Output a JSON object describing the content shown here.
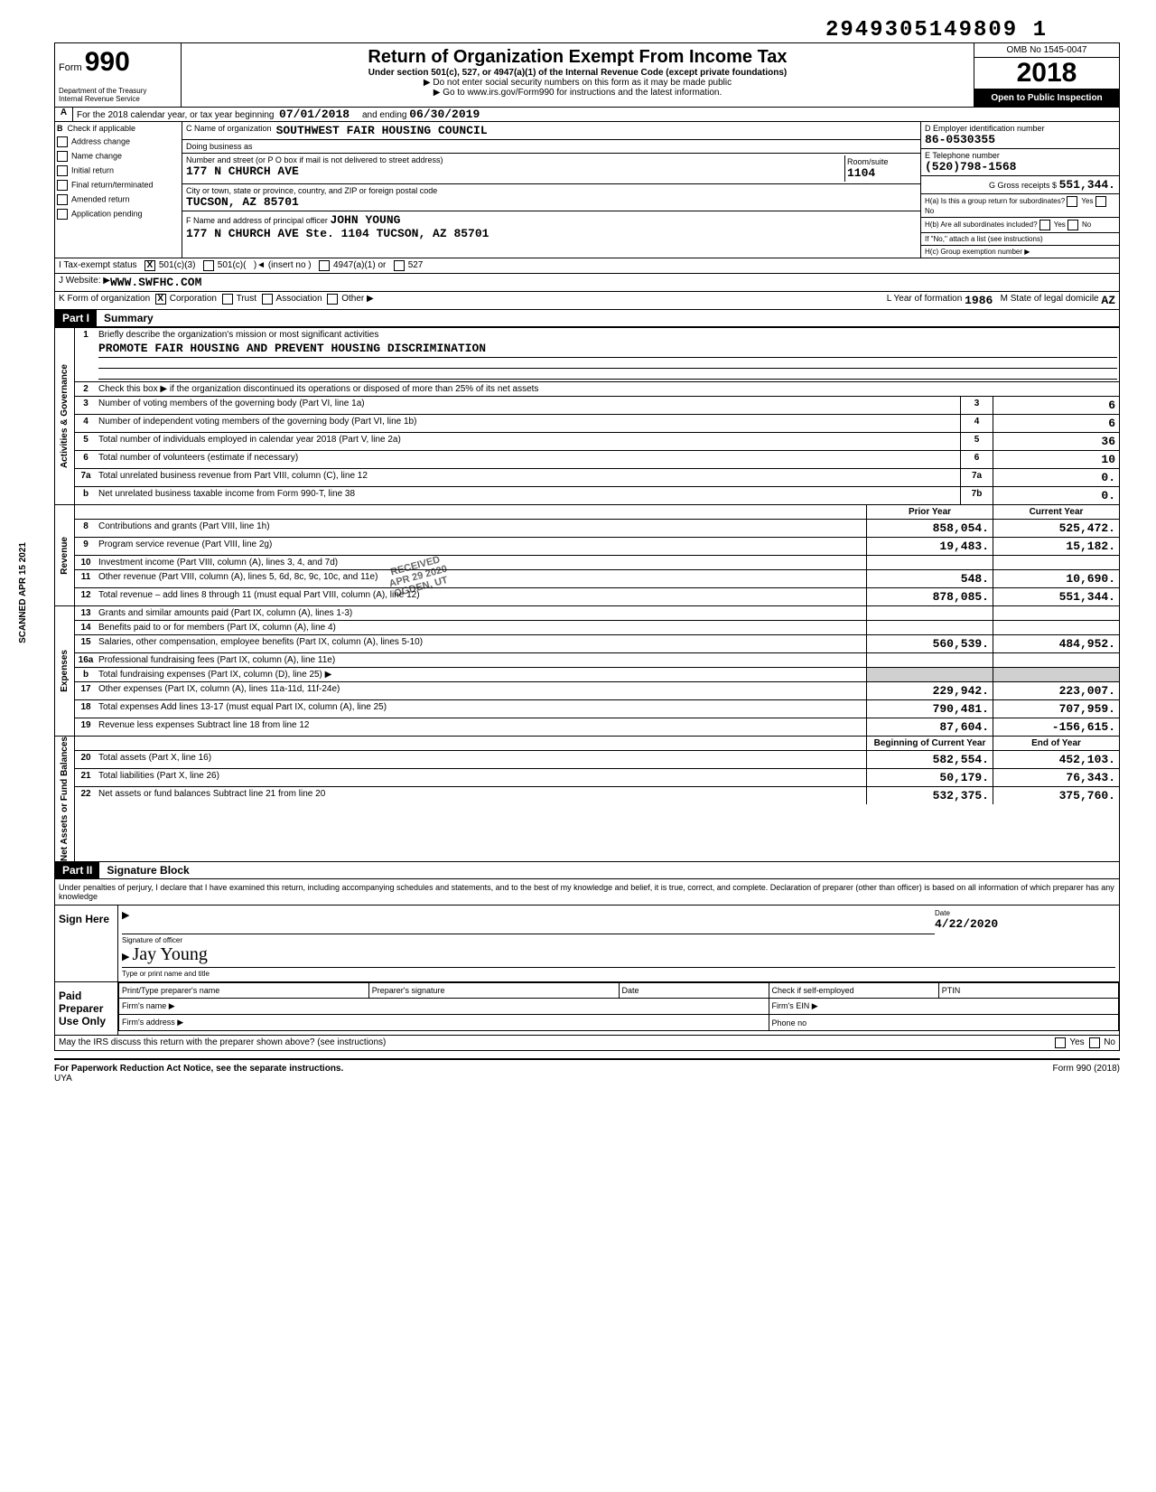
{
  "dln": "2949305149809 1",
  "header": {
    "form_label": "Form",
    "form_no": "990",
    "title": "Return of Organization Exempt From Income Tax",
    "subtitle": "Under section 501(c), 527, or 4947(a)(1) of the Internal Revenue Code (except private foundations)",
    "warn1": "▶ Do not enter social security numbers on this form as it may be made public",
    "warn2": "▶ Go to www.irs.gov/Form990 for instructions and the latest information.",
    "dept": "Department of the Treasury",
    "irs": "Internal Revenue Service",
    "omb": "OMB No 1545-0047",
    "year": "2018",
    "open": "Open to Public Inspection"
  },
  "row_a": {
    "label": "A",
    "text": "For the 2018 calendar year, or tax year beginning",
    "begin": "07/01/2018",
    "mid": "and ending",
    "end": "06/30/2019"
  },
  "b": {
    "check_label": "Check if applicable",
    "opts": [
      "Address change",
      "Name change",
      "Initial return",
      "Final return/terminated",
      "Amended return",
      "Application pending"
    ],
    "c_name_lbl": "C  Name of organization",
    "org": "SOUTHWEST FAIR HOUSING COUNCIL",
    "dba": "Doing business as",
    "street_lbl": "Number and street (or P O  box if mail is not delivered to street address)",
    "street": "177  N CHURCH AVE",
    "room_lbl": "Room/suite",
    "room": "1104",
    "city_lbl": "City or town, state or province, country, and ZIP or foreign postal code",
    "city": "TUCSON, AZ 85701",
    "f_lbl": "F  Name and address of principal officer",
    "officer": "JOHN     YOUNG",
    "officer_addr": "177  N CHURCH AVE Ste.  1104 TUCSON,  AZ 85701",
    "d_lbl": "D Employer identification number",
    "ein": "86-0530355",
    "e_lbl": "E Telephone number",
    "phone": "(520)798-1568",
    "g_lbl": "G Gross receipts $",
    "gross": "551,344.",
    "ha": "H(a)  Is this a group return for subordinates?",
    "hb": "H(b)  Are all subordinates included?",
    "hno": "If \"No,\" attach a list (see instructions)",
    "hc": "H(c)  Group exemption number ▶"
  },
  "i": {
    "lbl": "I    Tax-exempt status",
    "opt1": "501(c)(3)",
    "opt2": "501(c)(",
    "opt2b": ")◄ (insert no )",
    "opt3": "4947(a)(1) or",
    "opt4": "527"
  },
  "j": {
    "lbl": "J   Website: ▶",
    "val": "WWW.SWFHC.COM"
  },
  "k": {
    "lbl": "K Form of organization",
    "corp": "Corporation",
    "trust": "Trust",
    "assoc": "Association",
    "other": "Other ▶",
    "l": "L   Year of formation",
    "year": "1986",
    "m": "M  State of legal domicile",
    "state": "AZ"
  },
  "part1": {
    "hdr": "Part I",
    "title": "Summary",
    "line1_num": "1",
    "line1": "Briefly describe the organization's mission or most significant activities",
    "mission": "PROMOTE FAIR HOUSING AND PREVENT HOUSING DISCRIMINATION",
    "line2_num": "2",
    "line2": "Check this box ▶      if the organization discontinued its operations or disposed of more than 25% of its net assets",
    "rows_gov": [
      {
        "n": "3",
        "d": "Number of voting members of the governing body (Part VI, line 1a)",
        "b": "3",
        "v": "6"
      },
      {
        "n": "4",
        "d": "Number of independent voting members of the governing body (Part VI, line 1b)",
        "b": "4",
        "v": "6"
      },
      {
        "n": "5",
        "d": "Total number of individuals employed in calendar year 2018 (Part V, line 2a)",
        "b": "5",
        "v": "36"
      },
      {
        "n": "6",
        "d": "Total number of volunteers (estimate if necessary)",
        "b": "6",
        "v": "10"
      },
      {
        "n": "7a",
        "d": "Total unrelated business revenue from Part VIII, column (C), line 12",
        "b": "7a",
        "v": "0."
      },
      {
        "n": "b",
        "d": "Net unrelated business taxable income from Form 990-T, line 38",
        "b": "7b",
        "v": "0."
      }
    ],
    "col_prior": "Prior Year",
    "col_curr": "Current Year",
    "rows_rev": [
      {
        "n": "8",
        "d": "Contributions and grants (Part VIII, line 1h)",
        "p": "858,054.",
        "c": "525,472."
      },
      {
        "n": "9",
        "d": "Program service revenue (Part VIII, line 2g)",
        "p": "19,483.",
        "c": "15,182."
      },
      {
        "n": "10",
        "d": "Investment income (Part VIII, column (A), lines 3, 4, and 7d)",
        "p": "",
        "c": ""
      },
      {
        "n": "11",
        "d": "Other revenue (Part VIII, column (A), lines 5, 6d, 8c, 9c, 10c, and 11e)",
        "p": "548.",
        "c": "10,690."
      },
      {
        "n": "12",
        "d": "Total revenue – add lines 8 through 11 (must equal Part VIII, column (A), line 12)",
        "p": "878,085.",
        "c": "551,344."
      }
    ],
    "rows_exp": [
      {
        "n": "13",
        "d": "Grants and similar amounts paid (Part IX, column (A), lines 1-3)",
        "p": "",
        "c": ""
      },
      {
        "n": "14",
        "d": "Benefits paid to or for members (Part IX, column (A), line 4)",
        "p": "",
        "c": ""
      },
      {
        "n": "15",
        "d": "Salaries, other compensation, employee benefits (Part IX, column (A), lines 5-10)",
        "p": "560,539.",
        "c": "484,952."
      },
      {
        "n": "16a",
        "d": "Professional fundraising fees (Part IX, column (A), line 11e)",
        "p": "",
        "c": ""
      },
      {
        "n": "b",
        "d": "Total fundraising expenses (Part IX, column (D), line 25) ▶",
        "p": "gray",
        "c": "gray"
      },
      {
        "n": "17",
        "d": "Other expenses (Part IX, column (A), lines 11a-11d, 11f-24e)",
        "p": "229,942.",
        "c": "223,007."
      },
      {
        "n": "18",
        "d": "Total expenses Add lines 13-17 (must equal Part IX, column (A), line 25)",
        "p": "790,481.",
        "c": "707,959."
      },
      {
        "n": "19",
        "d": "Revenue less expenses Subtract line 18 from line 12",
        "p": "87,604.",
        "c": "-156,615."
      }
    ],
    "col_begin": "Beginning of Current Year",
    "col_end": "End of Year",
    "rows_net": [
      {
        "n": "20",
        "d": "Total assets (Part X, line 16)",
        "p": "582,554.",
        "c": "452,103."
      },
      {
        "n": "21",
        "d": "Total liabilities (Part X, line 26)",
        "p": "50,179.",
        "c": "76,343."
      },
      {
        "n": "22",
        "d": "Net assets or fund balances Subtract line 21 from line 20",
        "p": "532,375.",
        "c": "375,760."
      }
    ],
    "side_gov": "Activities & Governance",
    "side_rev": "Revenue",
    "side_exp": "Expenses",
    "side_net": "Net Assets or Fund Balances"
  },
  "part2": {
    "hdr": "Part II",
    "title": "Signature Block",
    "perjury": "Under penalties of perjury, I declare that I have examined this return, including accompanying schedules and statements, and to the best of my knowledge and belief, it is true, correct, and complete. Declaration of preparer (other than officer) is based on all information of which preparer has any knowledge",
    "sign": "Sign Here",
    "sig_lbl": "Signature of officer",
    "date_lbl": "Date",
    "date": "4/22/2020",
    "name": "Jay Young",
    "type_lbl": "Type or print name and title",
    "paid": "Paid Preparer Use Only",
    "prep_name": "Print/Type preparer's name",
    "prep_sig": "Preparer's signature",
    "prep_date": "Date",
    "check_self": "Check        if self-employed",
    "ptin": "PTIN",
    "firm": "Firm's name   ▶",
    "firm_ein": "Firm's EIN ▶",
    "firm_addr": "Firm's address ▶",
    "phone": "Phone no",
    "discuss": "May the IRS discuss this return with the preparer shown above? (see instructions)",
    "yes": "Yes",
    "no": "No"
  },
  "footer": {
    "pra": "For Paperwork Reduction Act Notice, see the separate instructions.",
    "uya": "UYA",
    "form": "Form 990 (2018)"
  },
  "stamp": "SCANNED APR 15 2021",
  "received": "RECEIVED\nAPR 29 2020\nOGDEN, UT"
}
